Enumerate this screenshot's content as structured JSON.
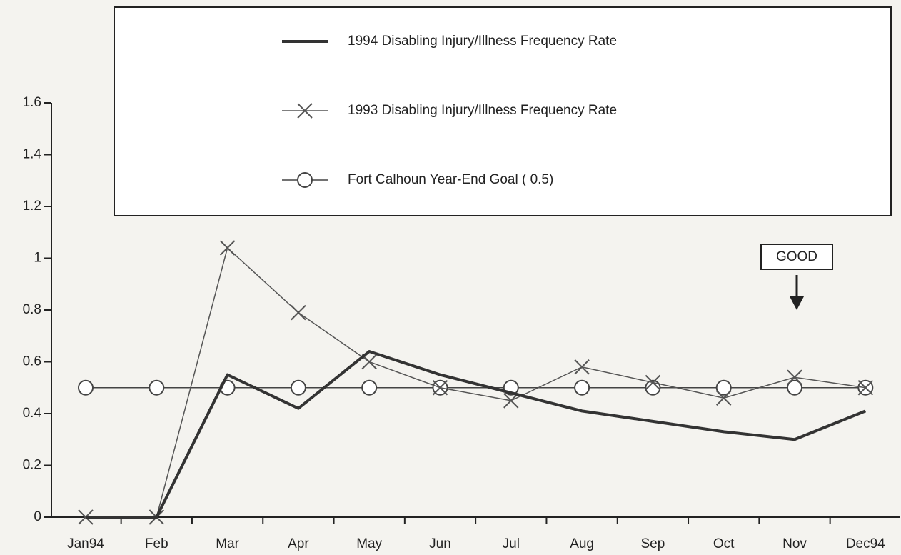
{
  "chart_data": {
    "type": "line",
    "categories": [
      "Jan94",
      "Feb",
      "Mar",
      "Apr",
      "May",
      "Jun",
      "Jul",
      "Aug",
      "Sep",
      "Oct",
      "Nov",
      "Dec94"
    ],
    "series": [
      {
        "name": "1994 Disabling Injury/Illness Frequency Rate",
        "color": "#333333",
        "marker": "none",
        "line_width": 4,
        "values": [
          0,
          0,
          0.55,
          0.42,
          0.64,
          0.55,
          0.48,
          0.41,
          0.37,
          0.33,
          0.3,
          0.41
        ]
      },
      {
        "name": "1993 Disabling Injury/Illness Frequency Rate",
        "color": "#555555",
        "marker": "x",
        "line_width": 1.5,
        "values": [
          0,
          0,
          1.04,
          0.79,
          0.6,
          0.5,
          0.45,
          0.58,
          0.52,
          0.46,
          0.54,
          0.5
        ]
      },
      {
        "name": "Fort Calhoun Year-End Goal ( 0.5)",
        "color": "#444444",
        "marker": "o",
        "line_width": 1.5,
        "values": [
          0.5,
          0.5,
          0.5,
          0.5,
          0.5,
          0.5,
          0.5,
          0.5,
          0.5,
          0.5,
          0.5,
          0.5
        ]
      }
    ],
    "ylim": [
      0,
      1.6
    ],
    "yticks": [
      0,
      0.2,
      0.4,
      0.6,
      0.8,
      1,
      1.2,
      1.4,
      1.6
    ],
    "annotation": "GOOD",
    "legend": "top"
  }
}
